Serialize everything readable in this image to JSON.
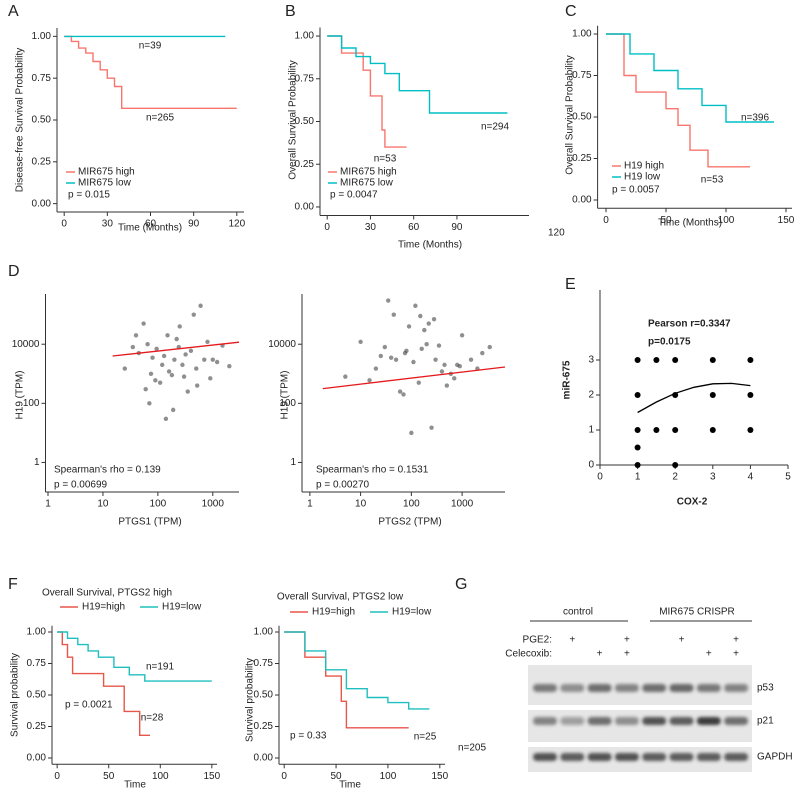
{
  "chart_data": [
    {
      "type": "line",
      "panel": "A",
      "ylabel": "Disease-free Survival Probability",
      "xlabel": "Time (Months)",
      "xlim": [
        -5,
        125
      ],
      "ylim": [
        -0.05,
        1.05
      ],
      "xticks": [
        0,
        30,
        60,
        90,
        120
      ],
      "yticks": [
        {
          "value": 0,
          "label": "0.00"
        },
        {
          "value": 0.25,
          "label": "0.25"
        },
        {
          "value": 0.5,
          "label": "0.50"
        },
        {
          "value": 0.75,
          "label": "0.75"
        },
        {
          "value": 1,
          "label": "1.00"
        }
      ],
      "series": [
        {
          "name": "MIR675 high",
          "color": "#f8766d",
          "x": [
            0,
            5,
            5,
            10,
            10,
            15,
            15,
            20,
            20,
            25,
            25,
            30,
            30,
            35,
            35,
            40,
            40,
            120
          ],
          "values": [
            1,
            1,
            0.97,
            0.97,
            0.93,
            0.93,
            0.9,
            0.9,
            0.85,
            0.85,
            0.8,
            0.8,
            0.75,
            0.75,
            0.7,
            0.7,
            0.57,
            0.57
          ]
        },
        {
          "name": "MIR675 low",
          "color": "#00bfc4",
          "x": [
            0,
            112
          ],
          "values": [
            1,
            1
          ]
        }
      ],
      "annotations": [
        "n=39",
        "n=265",
        "p = 0.015"
      ]
    },
    {
      "type": "line",
      "panel": "B",
      "ylabel": "Overall Survival Probability",
      "xlabel": "Time (Months)",
      "xlim": [
        -5,
        140
      ],
      "ylim": [
        -0.05,
        1.05
      ],
      "xticks": [
        0,
        30,
        60,
        90
      ],
      "yticks": [
        {
          "value": 0,
          "label": "0.00"
        },
        {
          "value": 0.25,
          "label": "0.25"
        },
        {
          "value": 0.5,
          "label": "0.50"
        },
        {
          "value": 0.75,
          "label": "0.75"
        },
        {
          "value": 1,
          "label": "1.00"
        }
      ],
      "series": [
        {
          "name": "MIR675 high",
          "color": "#f8766d",
          "x": [
            0,
            10,
            10,
            25,
            25,
            30,
            30,
            38,
            38,
            40,
            40,
            55
          ],
          "values": [
            1,
            1,
            0.9,
            0.9,
            0.8,
            0.8,
            0.65,
            0.65,
            0.45,
            0.45,
            0.35,
            0.35
          ]
        },
        {
          "name": "MIR675 low",
          "color": "#00bfc4",
          "x": [
            0,
            10,
            10,
            20,
            20,
            30,
            30,
            40,
            40,
            50,
            50,
            71,
            71,
            125
          ],
          "values": [
            1,
            1,
            0.93,
            0.93,
            0.88,
            0.88,
            0.84,
            0.84,
            0.78,
            0.78,
            0.68,
            0.68,
            0.55,
            0.55
          ]
        }
      ],
      "annotations": [
        "n=294",
        "n=53",
        "p = 0.0047",
        "120"
      ]
    },
    {
      "type": "line",
      "panel": "C",
      "ylabel": "Overall Survival Probability",
      "xlabel": "Time (Months)",
      "xlim": [
        -7,
        155
      ],
      "ylim": [
        -0.05,
        1.05
      ],
      "xticks": [
        0,
        50,
        100,
        150
      ],
      "yticks": [
        {
          "value": 0,
          "label": "0.00"
        },
        {
          "value": 0.25,
          "label": "0.25"
        },
        {
          "value": 0.5,
          "label": "0.50"
        },
        {
          "value": 0.75,
          "label": "0.75"
        },
        {
          "value": 1,
          "label": "1.00"
        }
      ],
      "series": [
        {
          "name": "H19 high",
          "color": "#f8766d",
          "x": [
            0,
            15,
            15,
            25,
            25,
            50,
            50,
            60,
            60,
            70,
            70,
            85,
            85,
            120
          ],
          "values": [
            1,
            1,
            0.75,
            0.75,
            0.65,
            0.65,
            0.55,
            0.55,
            0.45,
            0.45,
            0.3,
            0.3,
            0.2,
            0.2
          ]
        },
        {
          "name": "H19 low",
          "color": "#00bfc4",
          "x": [
            0,
            20,
            20,
            40,
            40,
            60,
            60,
            80,
            80,
            100,
            100,
            140
          ],
          "values": [
            1,
            1,
            0.88,
            0.88,
            0.78,
            0.78,
            0.67,
            0.67,
            0.57,
            0.57,
            0.47,
            0.47
          ]
        }
      ],
      "annotations": [
        "n=396",
        "n=53",
        "p = 0.0057"
      ]
    },
    {
      "type": "scatter",
      "panel": "D",
      "ylabel": "H19 (TPM)",
      "xlabel": "PTGS1 (TPM)",
      "xlog": true,
      "ylog": true,
      "xlim": [
        0.9,
        3000
      ],
      "ylim": [
        0.1,
        500000
      ],
      "xticks": [
        1,
        10,
        100,
        1000
      ],
      "yticks": [
        1,
        100,
        10000
      ],
      "color": "#444444",
      "x": [
        120,
        45,
        300,
        800,
        60,
        200,
        150,
        500,
        35,
        90,
        250,
        1200,
        70,
        400,
        180,
        600,
        25,
        130,
        900,
        220,
        80,
        350,
        1500,
        55,
        160,
        700,
        110,
        40,
        280,
        450,
        95,
        2000,
        190,
        65,
        320,
        140,
        1000,
        75,
        240,
        520
      ],
      "values": [
        2000,
        5000,
        800,
        12000,
        300,
        3000,
        20000,
        1500,
        8000,
        600,
        40000,
        2500,
        100,
        6000,
        900,
        200000,
        1500,
        4000,
        700,
        15000,
        3500,
        250,
        9000,
        50000,
        1200,
        3000,
        500,
        20000,
        2000,
        100000,
        7000,
        1800,
        60,
        10000,
        4500,
        30,
        3000,
        1000,
        8000,
        400
      ],
      "fit": {
        "color": "#e41a1c",
        "x": [
          15,
          3000
        ],
        "values": [
          4000,
          11700
        ]
      },
      "annotations": [
        "Spearman's rho =  0.139",
        "p =  0.00699"
      ]
    },
    {
      "type": "scatter",
      "ylabel": "H19 (TPM)",
      "xlabel": "PTGS2 (TPM)",
      "xlog": true,
      "ylog": true,
      "xlim": [
        0.7,
        7000
      ],
      "ylim": [
        0.1,
        500000
      ],
      "xticks": [
        1,
        10,
        100,
        1000
      ],
      "yticks": [
        1,
        100,
        10000
      ],
      "color": "#444444",
      "x": [
        50,
        200,
        15,
        800,
        120,
        30,
        400,
        90,
        2500,
        60,
        300,
        150,
        20,
        700,
        1000,
        250,
        80,
        40,
        500,
        180,
        3500,
        110,
        10,
        600,
        220,
        70,
        350,
        1500,
        140,
        45,
        900,
        25,
        280,
        5,
        160,
        450,
        100,
        35,
        2000,
        75
      ],
      "values": [
        3000,
        10000,
        600,
        2000,
        200000,
        8000,
        1200,
        40000,
        5000,
        250,
        3000,
        90000,
        1500,
        700,
        20000,
        15,
        6000,
        3500,
        400,
        30000,
        8000,
        2500,
        12000,
        1000,
        50000,
        200,
        9000,
        3000,
        500,
        100000,
        1800,
        4000,
        70000,
        800,
        7000,
        2000,
        10,
        300000,
        1500,
        5000
      ],
      "fit": {
        "color": "#e41a1c",
        "x": [
          1.8,
          7000
        ],
        "values": [
          316,
          1700
        ]
      },
      "annotations": [
        "Spearman's rho =  0.1531",
        "p =  0.00270"
      ]
    },
    {
      "type": "scatter",
      "panel": "E",
      "ylabel": "miR-675",
      "xlabel": "COX-2",
      "xlim": [
        0,
        5
      ],
      "ylim": [
        0,
        5
      ],
      "xticks": [
        0,
        1,
        2,
        3,
        4,
        5
      ],
      "yticks": [
        0,
        1,
        2,
        3
      ],
      "color": "#000000",
      "x": [
        1,
        1.5,
        2,
        3,
        4,
        1,
        2,
        3,
        4,
        1,
        1.5,
        2,
        3,
        4,
        1,
        1,
        2
      ],
      "values": [
        3,
        3,
        3,
        3,
        3,
        2,
        2,
        2,
        2,
        1,
        1,
        1,
        1,
        1,
        0.5,
        0,
        0
      ],
      "fit": {
        "color": "#000000",
        "x": [
          1,
          1.5,
          2,
          2.5,
          3,
          3.5,
          4
        ],
        "values": [
          1.5,
          1.8,
          2.05,
          2.22,
          2.32,
          2.33,
          2.27
        ]
      },
      "annotations": [
        "Pearson r=0.3347",
        "p=0.0175"
      ]
    },
    {
      "type": "line",
      "panel": "F",
      "title": "Overall Survival, PTGS2 high",
      "ylabel": "Survival probability",
      "xlabel": "Time",
      "xlim": [
        -5,
        155
      ],
      "ylim": [
        -0.05,
        1.05
      ],
      "xticks": [
        0,
        50,
        100,
        150
      ],
      "yticks": [
        {
          "value": 0,
          "label": "0.00"
        },
        {
          "value": 0.25,
          "label": "0.25"
        },
        {
          "value": 0.5,
          "label": "0.50"
        },
        {
          "value": 0.75,
          "label": "0.75"
        },
        {
          "value": 1,
          "label": "1.00"
        }
      ],
      "series": [
        {
          "name": "H19=high",
          "color": "#e8564a",
          "x": [
            0,
            5,
            5,
            10,
            10,
            15,
            15,
            45,
            45,
            65,
            65,
            80,
            80,
            90
          ],
          "values": [
            1,
            1,
            0.9,
            0.9,
            0.8,
            0.8,
            0.67,
            0.67,
            0.57,
            0.57,
            0.37,
            0.37,
            0.18,
            0.18
          ]
        },
        {
          "name": "H19=low",
          "color": "#1fbfbf",
          "x": [
            0,
            10,
            10,
            20,
            20,
            30,
            30,
            40,
            40,
            55,
            55,
            70,
            70,
            85,
            85,
            150
          ],
          "values": [
            1,
            1,
            0.95,
            0.95,
            0.9,
            0.9,
            0.85,
            0.85,
            0.8,
            0.8,
            0.72,
            0.72,
            0.66,
            0.66,
            0.61,
            0.61
          ]
        }
      ],
      "annotations": [
        "n=191",
        "n=28",
        "p = 0.0021"
      ]
    },
    {
      "type": "line",
      "title": "Overall Survival, PTGS2 low",
      "ylabel": "Survival probability",
      "xlabel": "Time",
      "xlim": [
        -5,
        155
      ],
      "ylim": [
        -0.05,
        1.05
      ],
      "xticks": [
        0,
        50,
        100,
        150
      ],
      "yticks": [
        {
          "value": 0,
          "label": "0.00"
        },
        {
          "value": 0.25,
          "label": "0.25"
        },
        {
          "value": 0.5,
          "label": "0.50"
        },
        {
          "value": 0.75,
          "label": "0.75"
        },
        {
          "value": 1,
          "label": "1.00"
        }
      ],
      "series": [
        {
          "name": "H19=high",
          "color": "#e8564a",
          "x": [
            0,
            20,
            20,
            40,
            40,
            55,
            55,
            60,
            60,
            120
          ],
          "values": [
            1,
            1,
            0.8,
            0.8,
            0.65,
            0.65,
            0.45,
            0.45,
            0.24,
            0.24
          ]
        },
        {
          "name": "H19=low",
          "color": "#1fbfbf",
          "x": [
            0,
            20,
            20,
            40,
            40,
            60,
            60,
            80,
            80,
            100,
            100,
            120,
            120,
            140
          ],
          "values": [
            1,
            1,
            0.85,
            0.85,
            0.7,
            0.7,
            0.55,
            0.55,
            0.48,
            0.48,
            0.44,
            0.44,
            0.39,
            0.39
          ]
        }
      ],
      "annotations": [
        "n=205",
        "n=25",
        "p = 0.33"
      ]
    }
  ],
  "blot": {
    "panel": "G",
    "groups": [
      "control",
      "MIR675  CRISPR"
    ],
    "treatments": [
      {
        "name": "PGE2:",
        "lanes": [
          null,
          "+",
          null,
          "+",
          null,
          "+",
          null,
          "+"
        ]
      },
      {
        "name": "Celecoxib:",
        "lanes": [
          null,
          null,
          "+",
          "+",
          null,
          null,
          "+",
          "+"
        ]
      }
    ],
    "bands": [
      "p53",
      "p21",
      "GAPDH"
    ]
  }
}
